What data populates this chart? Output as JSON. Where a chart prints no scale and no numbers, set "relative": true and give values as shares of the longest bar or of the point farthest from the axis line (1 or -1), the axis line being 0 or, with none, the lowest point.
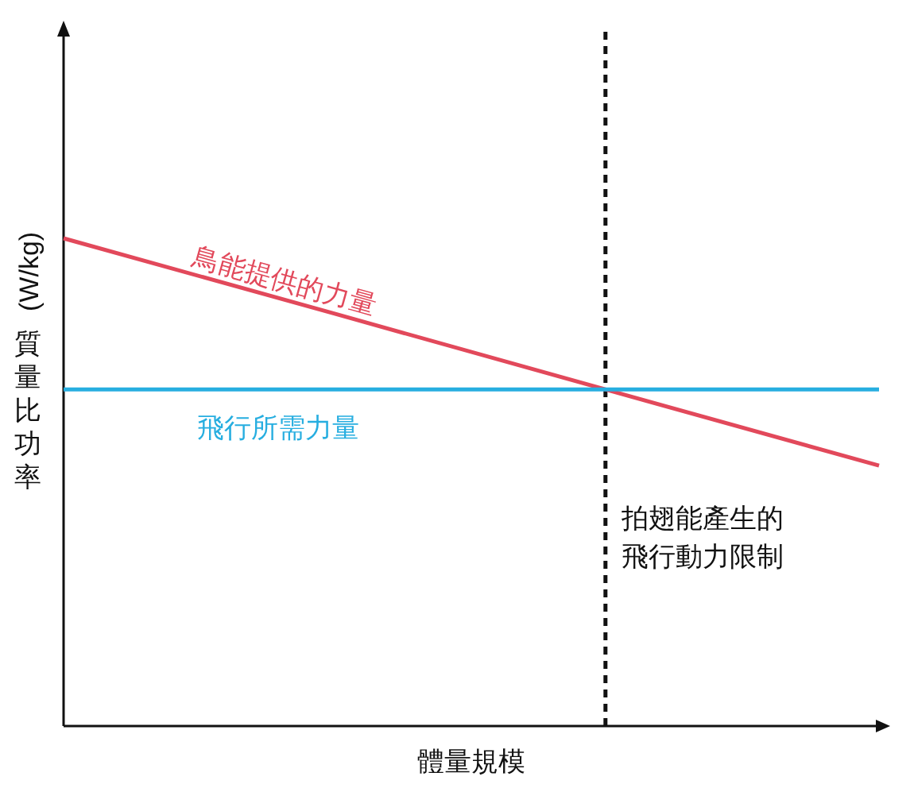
{
  "chart_data": {
    "type": "line",
    "relative": true,
    "xlabel": "體量規模",
    "ylabel": "質量比功率 (W/kg)",
    "categories": [
      null,
      null,
      null,
      null
    ],
    "series": [
      {
        "name": "鳥能提供的力量",
        "color": "#e2495b",
        "values": [
          1,
          0.845,
          0.689,
          0.534
        ]
      },
      {
        "name": "飛行所需力量",
        "color": "#27aee0",
        "values": [
          0.69,
          0.69,
          0.69,
          0.69
        ]
      }
    ],
    "annotations": [
      "拍翅能產生的飛行動力限制"
    ],
    "legend": false,
    "grid": false,
    "marker": "none",
    "line_style": "solid"
  }
}
